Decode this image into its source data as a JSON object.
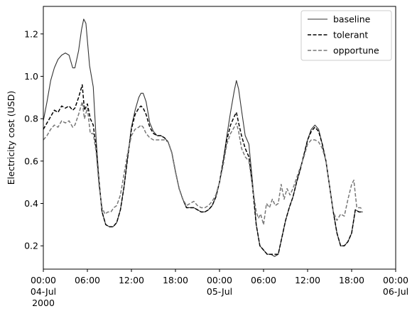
{
  "chart_data": {
    "type": "line",
    "ylabel": "Electricity cost (USD)",
    "xlabel": "",
    "xlim": [
      0,
      48
    ],
    "ylim": [
      0.09,
      1.33
    ],
    "yticks": [
      0.2,
      0.4,
      0.6,
      0.8,
      1.0,
      1.2
    ],
    "ytick_labels": [
      "0.2",
      "0.4",
      "0.6",
      "0.8",
      "1.0",
      "1.2"
    ],
    "xticks": [
      {
        "x": 0,
        "lines": [
          "00:00",
          "04-Jul",
          "2000"
        ]
      },
      {
        "x": 6,
        "lines": [
          "06:00"
        ]
      },
      {
        "x": 12,
        "lines": [
          "12:00"
        ]
      },
      {
        "x": 18,
        "lines": [
          "18:00"
        ]
      },
      {
        "x": 24,
        "lines": [
          "00:00",
          "05-Jul"
        ]
      },
      {
        "x": 30,
        "lines": [
          "06:00"
        ]
      },
      {
        "x": 36,
        "lines": [
          "12:00"
        ]
      },
      {
        "x": 42,
        "lines": [
          "18:00"
        ]
      },
      {
        "x": 48,
        "lines": [
          "00:00",
          "06-Jul"
        ]
      }
    ],
    "legend_position": "top-right",
    "series": [
      {
        "name": "baseline",
        "color": "#333333",
        "dash": "solid",
        "points": [
          [
            0,
            0.79
          ],
          [
            0.5,
            0.88
          ],
          [
            1,
            0.98
          ],
          [
            1.5,
            1.04
          ],
          [
            2,
            1.08
          ],
          [
            2.5,
            1.1
          ],
          [
            3,
            1.11
          ],
          [
            3.5,
            1.1
          ],
          [
            4,
            1.04
          ],
          [
            4.3,
            1.04
          ],
          [
            4.8,
            1.12
          ],
          [
            5.2,
            1.22
          ],
          [
            5.5,
            1.27
          ],
          [
            5.8,
            1.25
          ],
          [
            6.3,
            1.05
          ],
          [
            6.8,
            0.95
          ],
          [
            7.2,
            0.7
          ],
          [
            7.6,
            0.5
          ],
          [
            8,
            0.36
          ],
          [
            8.5,
            0.3
          ],
          [
            9,
            0.29
          ],
          [
            9.5,
            0.29
          ],
          [
            10,
            0.31
          ],
          [
            10.5,
            0.37
          ],
          [
            11,
            0.48
          ],
          [
            11.5,
            0.62
          ],
          [
            12,
            0.76
          ],
          [
            12.5,
            0.84
          ],
          [
            13,
            0.9
          ],
          [
            13.3,
            0.92
          ],
          [
            13.6,
            0.92
          ],
          [
            14,
            0.88
          ],
          [
            14.5,
            0.78
          ],
          [
            15,
            0.74
          ],
          [
            15.5,
            0.72
          ],
          [
            16,
            0.72
          ],
          [
            16.5,
            0.71
          ],
          [
            17,
            0.69
          ],
          [
            17.5,
            0.64
          ],
          [
            18,
            0.55
          ],
          [
            18.5,
            0.47
          ],
          [
            19,
            0.42
          ],
          [
            19.5,
            0.38
          ],
          [
            20,
            0.38
          ],
          [
            20.5,
            0.38
          ],
          [
            21,
            0.37
          ],
          [
            21.5,
            0.36
          ],
          [
            22,
            0.36
          ],
          [
            22.5,
            0.37
          ],
          [
            23,
            0.39
          ],
          [
            23.5,
            0.43
          ],
          [
            24,
            0.5
          ],
          [
            24.5,
            0.6
          ],
          [
            25,
            0.72
          ],
          [
            25.5,
            0.83
          ],
          [
            26,
            0.93
          ],
          [
            26.3,
            0.98
          ],
          [
            26.6,
            0.94
          ],
          [
            27,
            0.84
          ],
          [
            27.5,
            0.72
          ],
          [
            28,
            0.68
          ],
          [
            28.5,
            0.5
          ],
          [
            29,
            0.3
          ],
          [
            29.5,
            0.2
          ],
          [
            30,
            0.18
          ],
          [
            30.5,
            0.16
          ],
          [
            31,
            0.16
          ],
          [
            31.5,
            0.15
          ],
          [
            32,
            0.16
          ],
          [
            32.5,
            0.24
          ],
          [
            33,
            0.32
          ],
          [
            33.5,
            0.38
          ],
          [
            34,
            0.43
          ],
          [
            34.5,
            0.5
          ],
          [
            35,
            0.56
          ],
          [
            35.5,
            0.63
          ],
          [
            36,
            0.7
          ],
          [
            36.5,
            0.75
          ],
          [
            37,
            0.77
          ],
          [
            37.5,
            0.75
          ],
          [
            38,
            0.68
          ],
          [
            38.5,
            0.6
          ],
          [
            39,
            0.48
          ],
          [
            39.5,
            0.36
          ],
          [
            40,
            0.26
          ],
          [
            40.5,
            0.2
          ],
          [
            41,
            0.2
          ],
          [
            41.5,
            0.22
          ],
          [
            42,
            0.26
          ],
          [
            42.5,
            0.37
          ],
          [
            43,
            0.36
          ],
          [
            43.5,
            0.36
          ]
        ]
      },
      {
        "name": "tolerant",
        "color": "#000000",
        "dash": "dashed",
        "points": [
          [
            0,
            0.75
          ],
          [
            0.5,
            0.78
          ],
          [
            1,
            0.81
          ],
          [
            1.5,
            0.84
          ],
          [
            2,
            0.83
          ],
          [
            2.5,
            0.86
          ],
          [
            3,
            0.85
          ],
          [
            3.5,
            0.86
          ],
          [
            4,
            0.84
          ],
          [
            4.3,
            0.85
          ],
          [
            4.8,
            0.9
          ],
          [
            5.3,
            0.96
          ],
          [
            5.6,
            0.84
          ],
          [
            6,
            0.87
          ],
          [
            6.4,
            0.8
          ],
          [
            6.8,
            0.77
          ],
          [
            7.2,
            0.66
          ],
          [
            7.6,
            0.5
          ],
          [
            8,
            0.36
          ],
          [
            8.5,
            0.3
          ],
          [
            9,
            0.29
          ],
          [
            9.5,
            0.29
          ],
          [
            10,
            0.31
          ],
          [
            10.5,
            0.37
          ],
          [
            11,
            0.48
          ],
          [
            11.5,
            0.62
          ],
          [
            12,
            0.75
          ],
          [
            12.5,
            0.82
          ],
          [
            13,
            0.85
          ],
          [
            13.3,
            0.86
          ],
          [
            13.6,
            0.85
          ],
          [
            14,
            0.82
          ],
          [
            14.5,
            0.76
          ],
          [
            15,
            0.73
          ],
          [
            15.5,
            0.72
          ],
          [
            16,
            0.72
          ],
          [
            16.5,
            0.71
          ],
          [
            17,
            0.69
          ],
          [
            17.5,
            0.64
          ],
          [
            18,
            0.55
          ],
          [
            18.5,
            0.47
          ],
          [
            19,
            0.42
          ],
          [
            19.5,
            0.38
          ],
          [
            20,
            0.38
          ],
          [
            20.5,
            0.38
          ],
          [
            21,
            0.37
          ],
          [
            21.5,
            0.36
          ],
          [
            22,
            0.36
          ],
          [
            22.5,
            0.37
          ],
          [
            23,
            0.39
          ],
          [
            23.5,
            0.43
          ],
          [
            24,
            0.5
          ],
          [
            24.5,
            0.6
          ],
          [
            25,
            0.7
          ],
          [
            25.5,
            0.77
          ],
          [
            26,
            0.81
          ],
          [
            26.3,
            0.83
          ],
          [
            26.6,
            0.78
          ],
          [
            27,
            0.72
          ],
          [
            27.5,
            0.66
          ],
          [
            28,
            0.62
          ],
          [
            28.5,
            0.48
          ],
          [
            29,
            0.3
          ],
          [
            29.5,
            0.2
          ],
          [
            30,
            0.18
          ],
          [
            30.5,
            0.16
          ],
          [
            31,
            0.16
          ],
          [
            31.5,
            0.16
          ],
          [
            32,
            0.16
          ],
          [
            32.5,
            0.24
          ],
          [
            33,
            0.32
          ],
          [
            33.5,
            0.38
          ],
          [
            34,
            0.43
          ],
          [
            34.5,
            0.5
          ],
          [
            35,
            0.56
          ],
          [
            35.5,
            0.63
          ],
          [
            36,
            0.7
          ],
          [
            36.5,
            0.74
          ],
          [
            37,
            0.76
          ],
          [
            37.5,
            0.74
          ],
          [
            38,
            0.68
          ],
          [
            38.5,
            0.6
          ],
          [
            39,
            0.48
          ],
          [
            39.5,
            0.36
          ],
          [
            40,
            0.26
          ],
          [
            40.5,
            0.2
          ],
          [
            41,
            0.2
          ],
          [
            41.5,
            0.22
          ],
          [
            42,
            0.26
          ],
          [
            42.5,
            0.37
          ],
          [
            43,
            0.36
          ],
          [
            43.5,
            0.36
          ]
        ]
      },
      {
        "name": "opportune",
        "color": "#777777",
        "dash": "dashed",
        "points": [
          [
            0,
            0.7
          ],
          [
            0.5,
            0.72
          ],
          [
            1,
            0.75
          ],
          [
            1.5,
            0.77
          ],
          [
            2,
            0.76
          ],
          [
            2.5,
            0.79
          ],
          [
            3,
            0.78
          ],
          [
            3.5,
            0.79
          ],
          [
            4,
            0.76
          ],
          [
            4.3,
            0.77
          ],
          [
            4.8,
            0.82
          ],
          [
            5.3,
            0.88
          ],
          [
            5.6,
            0.8
          ],
          [
            6,
            0.85
          ],
          [
            6.4,
            0.73
          ],
          [
            6.8,
            0.73
          ],
          [
            7.2,
            0.64
          ],
          [
            7.6,
            0.48
          ],
          [
            8,
            0.38
          ],
          [
            8.4,
            0.35
          ],
          [
            8.8,
            0.36
          ],
          [
            9.2,
            0.36
          ],
          [
            9.6,
            0.38
          ],
          [
            10,
            0.39
          ],
          [
            10.5,
            0.44
          ],
          [
            11,
            0.54
          ],
          [
            11.5,
            0.64
          ],
          [
            12,
            0.72
          ],
          [
            12.5,
            0.75
          ],
          [
            13,
            0.76
          ],
          [
            13.3,
            0.77
          ],
          [
            13.6,
            0.76
          ],
          [
            14,
            0.73
          ],
          [
            14.5,
            0.71
          ],
          [
            15,
            0.7
          ],
          [
            15.5,
            0.7
          ],
          [
            16,
            0.7
          ],
          [
            16.5,
            0.7
          ],
          [
            17,
            0.69
          ],
          [
            17.5,
            0.64
          ],
          [
            18,
            0.55
          ],
          [
            18.5,
            0.47
          ],
          [
            19,
            0.42
          ],
          [
            19.5,
            0.39
          ],
          [
            20,
            0.4
          ],
          [
            20.5,
            0.41
          ],
          [
            21,
            0.39
          ],
          [
            21.5,
            0.38
          ],
          [
            22,
            0.38
          ],
          [
            22.5,
            0.39
          ],
          [
            23,
            0.41
          ],
          [
            23.5,
            0.44
          ],
          [
            24,
            0.5
          ],
          [
            24.5,
            0.58
          ],
          [
            25,
            0.68
          ],
          [
            25.5,
            0.73
          ],
          [
            26,
            0.76
          ],
          [
            26.3,
            0.78
          ],
          [
            26.6,
            0.74
          ],
          [
            27,
            0.66
          ],
          [
            27.5,
            0.62
          ],
          [
            28,
            0.6
          ],
          [
            28.5,
            0.48
          ],
          [
            29,
            0.36
          ],
          [
            29.3,
            0.33
          ],
          [
            29.6,
            0.35
          ],
          [
            30,
            0.3
          ],
          [
            30.4,
            0.4
          ],
          [
            30.8,
            0.38
          ],
          [
            31.2,
            0.42
          ],
          [
            31.6,
            0.39
          ],
          [
            32,
            0.4
          ],
          [
            32.4,
            0.49
          ],
          [
            32.8,
            0.42
          ],
          [
            33.2,
            0.47
          ],
          [
            33.6,
            0.44
          ],
          [
            34,
            0.47
          ],
          [
            34.5,
            0.52
          ],
          [
            35,
            0.57
          ],
          [
            35.5,
            0.62
          ],
          [
            36,
            0.68
          ],
          [
            36.5,
            0.7
          ],
          [
            37,
            0.7
          ],
          [
            37.5,
            0.69
          ],
          [
            38,
            0.66
          ],
          [
            38.5,
            0.6
          ],
          [
            39,
            0.48
          ],
          [
            39.5,
            0.36
          ],
          [
            40,
            0.32
          ],
          [
            40.5,
            0.35
          ],
          [
            41,
            0.34
          ],
          [
            41.5,
            0.42
          ],
          [
            42,
            0.49
          ],
          [
            42.3,
            0.51
          ],
          [
            42.7,
            0.38
          ],
          [
            43.2,
            0.38
          ],
          [
            43.5,
            0.37
          ]
        ]
      }
    ]
  }
}
